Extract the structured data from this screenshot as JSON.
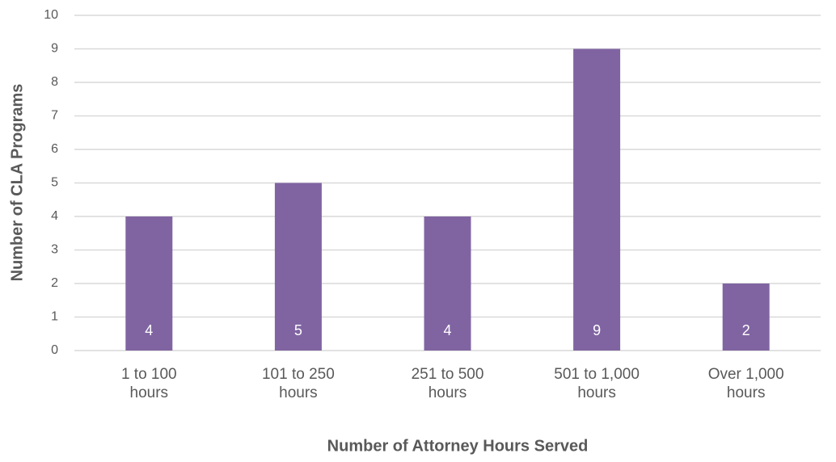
{
  "chart_data": {
    "type": "bar",
    "x_label": "Number of Attorney Hours Served",
    "y_label": "Number of CLA Programs",
    "categories": [
      "1 to 100 hours",
      "101 to 250 hours",
      "251 to 500 hours",
      "501 to 1,000 hours",
      "Over 1,000 hours"
    ],
    "values": [
      4,
      5,
      4,
      9,
      2
    ],
    "color": "#8064a2",
    "ylim": [
      0,
      10
    ],
    "yticks": [
      0,
      1,
      2,
      3,
      4,
      5,
      6,
      7,
      8,
      9,
      10
    ],
    "grid": true
  }
}
